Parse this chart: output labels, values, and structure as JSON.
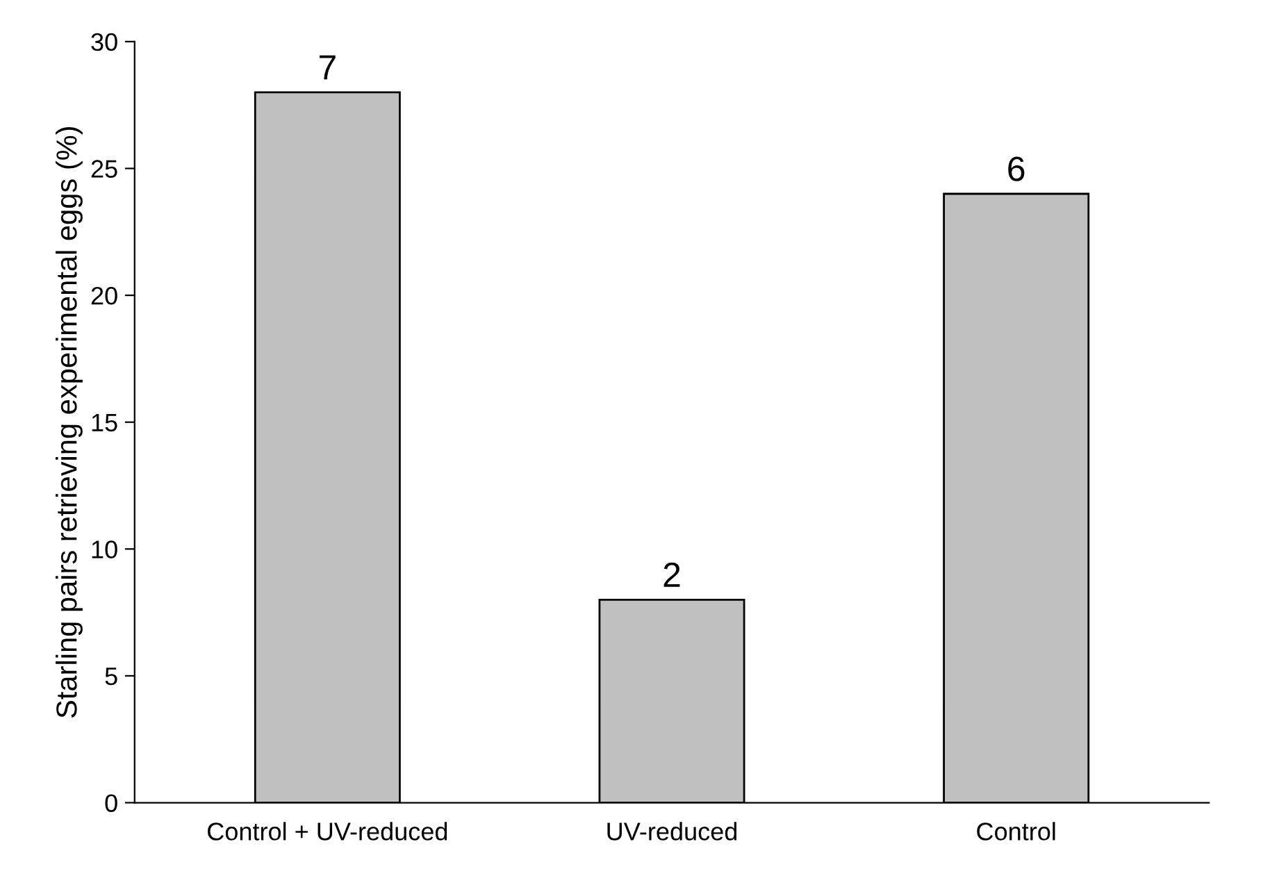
{
  "chart_data": {
    "type": "bar",
    "ylabel": "Starling pairs retrieving experimental eggs (%)",
    "categories": [
      "Control + UV-reduced",
      "UV-reduced",
      "Control"
    ],
    "values": [
      28,
      8,
      24
    ],
    "annotations": [
      {
        "text": "7",
        "x": "Control + UV-reduced",
        "y": 28
      },
      {
        "text": "2",
        "x": "UV-reduced",
        "y": 8
      },
      {
        "text": "6",
        "x": "Control",
        "y": 24
      }
    ],
    "color": "#c0c0c0",
    "ylim": [
      0,
      30
    ],
    "yticks": [
      0,
      5,
      10,
      15,
      20,
      25,
      30
    ],
    "grid": false,
    "legend": false
  }
}
